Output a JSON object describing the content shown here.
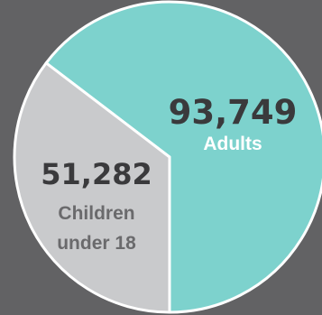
{
  "chart_data": {
    "type": "pie",
    "categories": [
      "Adults",
      "Children under 18"
    ],
    "values": [
      93749,
      51282
    ],
    "value_labels": [
      "93,749",
      "51,282"
    ],
    "category_label_lines": [
      [
        "Adults"
      ],
      [
        "Children",
        "under 18"
      ]
    ],
    "colors": [
      "#7dd2cd",
      "#c9cacc"
    ],
    "value_text_colors": [
      "#3a3a3c",
      "#3a3a3c"
    ],
    "category_text_colors": [
      "#ffffff",
      "#6a6a6c"
    ],
    "slice_border_color": "#ffffff",
    "start_angle_deg": 180,
    "direction": "counterclockwise",
    "legend": "none"
  }
}
